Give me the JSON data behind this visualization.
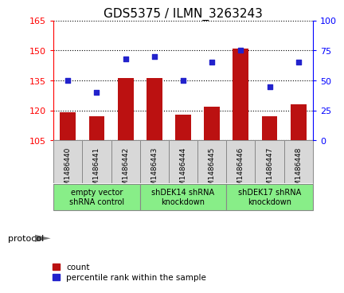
{
  "title": "GDS5375 / ILMN_3263243",
  "samples": [
    "GSM1486440",
    "GSM1486441",
    "GSM1486442",
    "GSM1486443",
    "GSM1486444",
    "GSM1486445",
    "GSM1486446",
    "GSM1486447",
    "GSM1486448"
  ],
  "count_values": [
    119,
    117,
    136,
    136,
    118,
    122,
    151,
    117,
    123
  ],
  "percentile_values": [
    50,
    40,
    68,
    70,
    50,
    65,
    75,
    45,
    65
  ],
  "ylim_left": [
    105,
    165
  ],
  "ylim_right": [
    0,
    100
  ],
  "yticks_left": [
    105,
    120,
    135,
    150,
    165
  ],
  "yticks_right": [
    0,
    25,
    50,
    75,
    100
  ],
  "bar_color": "#bb1111",
  "dot_color": "#2222cc",
  "groups": [
    {
      "label": "empty vector\nshRNA control",
      "start": 0,
      "end": 3
    },
    {
      "label": "shDEK14 shRNA\nknockdown",
      "start": 3,
      "end": 6
    },
    {
      "label": "shDEK17 shRNA\nknockdown",
      "start": 6,
      "end": 9
    }
  ],
  "group_facecolor": "#88ee88",
  "sample_box_color": "#d8d8d8",
  "legend_count_label": "count",
  "legend_percentile_label": "percentile rank within the sample",
  "protocol_label": "protocol",
  "title_fontsize": 11
}
